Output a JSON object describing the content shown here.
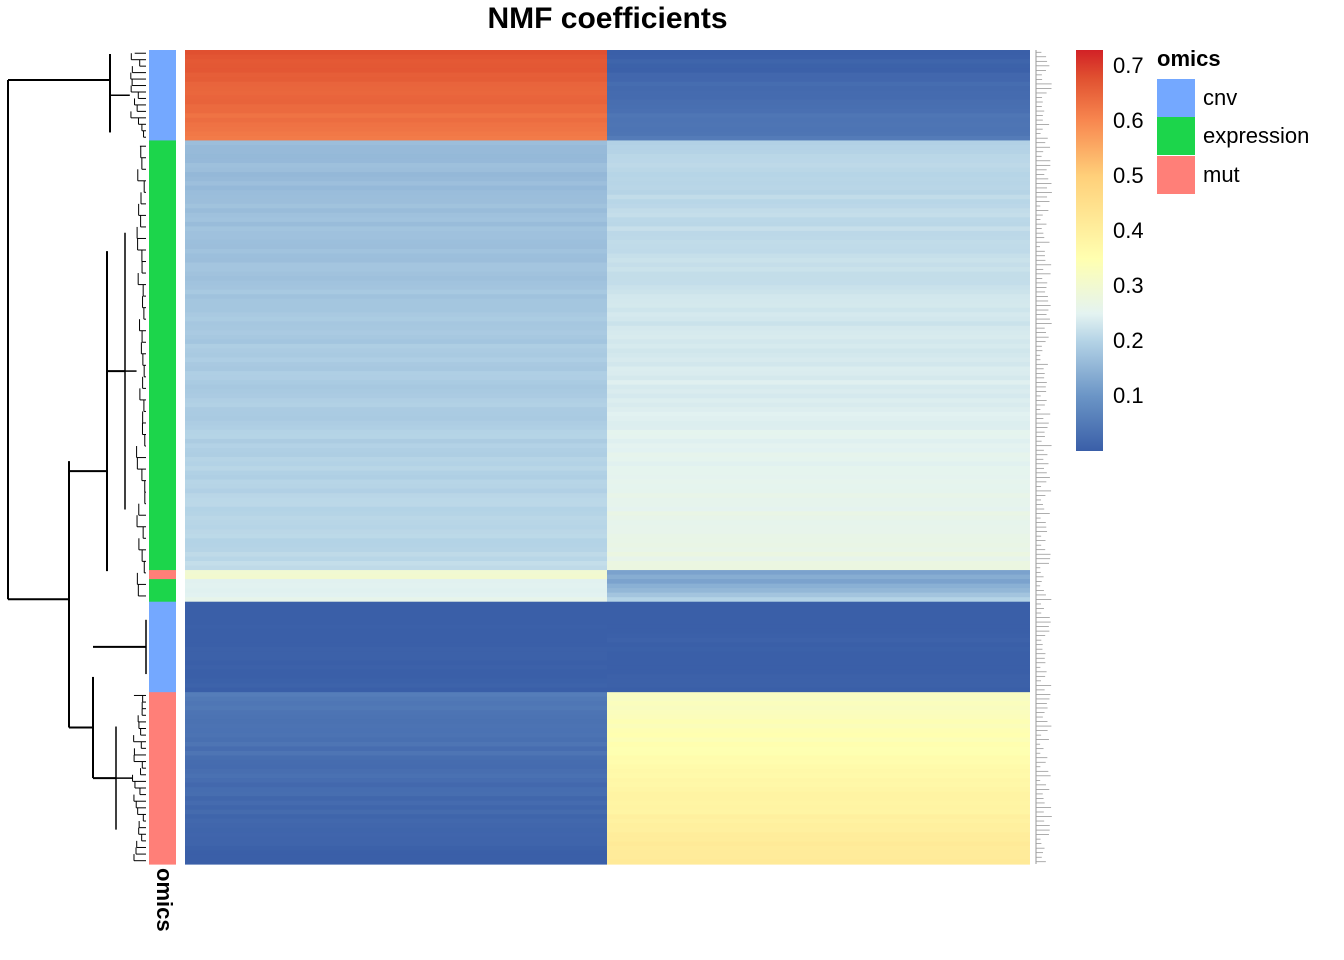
{
  "chart_data": {
    "type": "heatmap",
    "title": "NMF coefficients",
    "columns": [
      "",
      ""
    ],
    "row_annotation": {
      "name": "omics",
      "levels": [
        {
          "label": "cnv",
          "color": "#74A8FF"
        },
        {
          "label": "expression",
          "color": "#1CD54B"
        },
        {
          "label": "mut",
          "color": "#FF7F78"
        }
      ]
    },
    "color_scale": {
      "colors": [
        "#3A5FA8",
        "#6B95C6",
        "#B4D3E6",
        "#E4F3F1",
        "#FFFFB0",
        "#FFD07A",
        "#F88850",
        "#E05030",
        "#D22126"
      ],
      "stops": [
        0.0,
        0.1,
        0.2,
        0.25,
        0.35,
        0.5,
        0.6,
        0.68,
        0.73
      ],
      "ticks": [
        "0.1",
        "0.2",
        "0.3",
        "0.4",
        "0.5",
        "0.6",
        "0.7"
      ],
      "tick_values": [
        0.1,
        0.2,
        0.3,
        0.4,
        0.5,
        0.6,
        0.7
      ],
      "range": [
        0.0,
        0.73
      ]
    },
    "row_blocks": [
      {
        "omics": "cnv",
        "rows": 20,
        "col1": [
          0.68,
          0.62
        ],
        "col2": [
          0.0,
          0.05
        ]
      },
      {
        "omics": "expression",
        "rows": 95,
        "col1": [
          0.16,
          0.21
        ],
        "col2": [
          0.2,
          0.27
        ]
      },
      {
        "omics": "mut",
        "rows": 2,
        "col1": [
          0.3,
          0.3
        ],
        "col2": [
          0.12,
          0.14
        ]
      },
      {
        "omics": "expression",
        "rows": 5,
        "col1": [
          0.24,
          0.26
        ],
        "col2": [
          0.12,
          0.2
        ]
      },
      {
        "omics": "cnv",
        "rows": 20,
        "col1": [
          0.0,
          0.0
        ],
        "col2": [
          0.0,
          0.0
        ]
      },
      {
        "omics": "mut",
        "rows": 38,
        "col1": [
          0.05,
          0.0
        ],
        "col2": [
          0.32,
          0.42
        ]
      }
    ]
  }
}
